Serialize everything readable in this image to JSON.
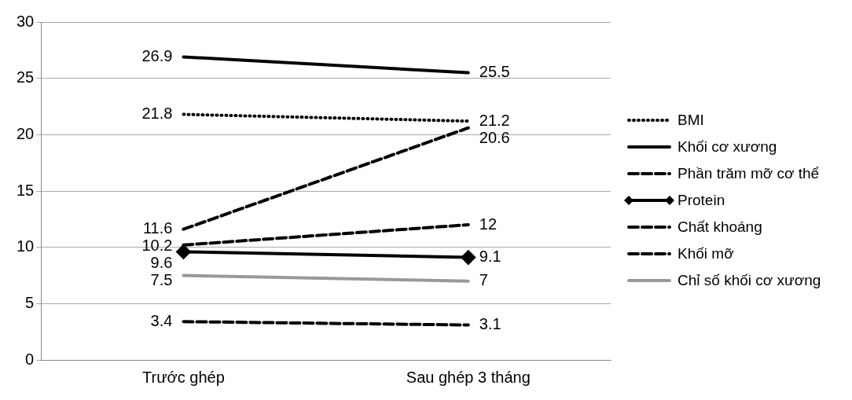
{
  "chart_data": {
    "type": "line",
    "categories": [
      "Trước ghép",
      "Sau ghép 3 tháng"
    ],
    "series": [
      {
        "name": "BMI",
        "color": "#000000",
        "values": [
          21.8,
          21.2
        ],
        "line_style": "dotted",
        "marker": "none"
      },
      {
        "name": "Khối cơ xương",
        "color": "#000000",
        "values": [
          26.9,
          25.5
        ],
        "line_style": "solid",
        "marker": "none"
      },
      {
        "name": "Phần trăm mỡ cơ thể",
        "color": "#000000",
        "values": [
          11.6,
          20.6
        ],
        "line_style": "dashed",
        "marker": "none"
      },
      {
        "name": "Protein",
        "color": "#000000",
        "values": [
          9.6,
          9.1
        ],
        "line_style": "solid",
        "marker": "diamond"
      },
      {
        "name": "Chất khoáng",
        "color": "#000000",
        "values": [
          3.4,
          3.1
        ],
        "line_style": "dashed",
        "marker": "none"
      },
      {
        "name": "Khối mỡ",
        "color": "#000000",
        "values": [
          10.2,
          12
        ],
        "line_style": "dashed",
        "marker": "none"
      },
      {
        "name": "Chỉ số khối cơ xương",
        "color": "#999999",
        "values": [
          7.5,
          7
        ],
        "line_style": "solid",
        "marker": "none"
      }
    ],
    "ylim": [
      0,
      30
    ],
    "yticks": [
      0,
      5,
      10,
      15,
      20,
      25,
      30
    ],
    "grid": "y",
    "legend": "right",
    "data_labels": true
  }
}
